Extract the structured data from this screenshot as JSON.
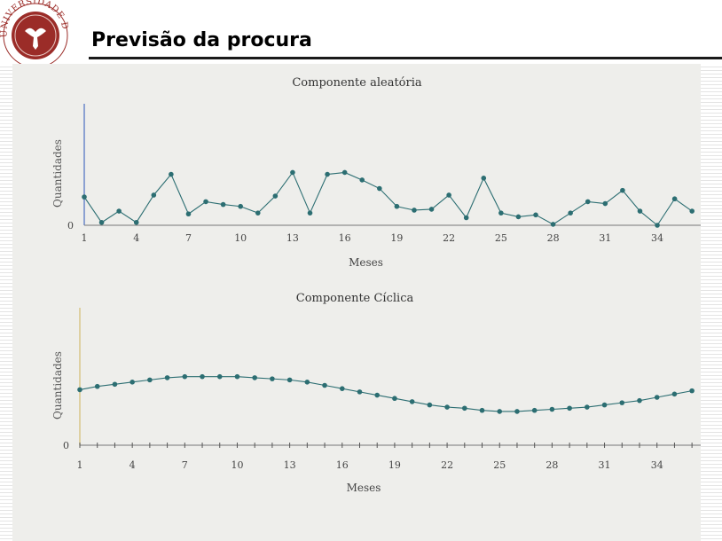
{
  "page": {
    "title": "Previsão da procura",
    "logo_text": "UNIVERSIDADE DE ÉVORA"
  },
  "colors": {
    "series": "#2c6e72",
    "axis": "#777777",
    "ticks": "#444444",
    "title_rule": "#1a1a1a",
    "logo_red": "#9b2c28"
  },
  "chart_data": [
    {
      "type": "line",
      "title": "Componente aleatória",
      "xlabel": "Meses",
      "ylabel": "Quantidades",
      "x_ticks": [
        1,
        4,
        7,
        10,
        13,
        16,
        19,
        22,
        25,
        28,
        31,
        34
      ],
      "y_ticks": [
        0
      ],
      "xlim": [
        1,
        36.5
      ],
      "ylim": [
        0,
        11
      ],
      "grid": false,
      "series": [
        {
          "x": [
            1,
            2,
            3,
            4,
            5,
            6,
            7,
            8,
            9,
            10,
            11,
            12,
            13,
            14,
            15,
            16,
            17,
            18,
            19,
            20,
            21,
            22,
            23,
            24,
            25,
            26,
            27,
            28,
            29,
            30,
            31,
            32,
            33,
            34,
            35,
            36
          ],
          "values": [
            3.0,
            0.3,
            1.5,
            0.3,
            3.2,
            5.4,
            1.2,
            2.5,
            2.2,
            2.0,
            1.3,
            3.1,
            5.6,
            1.3,
            5.4,
            5.6,
            4.8,
            3.9,
            2.0,
            1.6,
            1.7,
            3.2,
            0.8,
            5.0,
            1.3,
            0.9,
            1.1,
            0.1,
            1.3,
            2.5,
            2.3,
            3.7,
            1.5,
            0.0,
            2.8,
            1.5
          ]
        }
      ]
    },
    {
      "type": "line",
      "title": "Componente Cíclica",
      "xlabel": "Meses",
      "ylabel": "Quantidades",
      "x_ticks": [
        1,
        4,
        7,
        10,
        13,
        16,
        19,
        22,
        25,
        28,
        31,
        34
      ],
      "y_ticks": [
        0
      ],
      "xlim": [
        1,
        36.5
      ],
      "ylim": [
        0,
        11
      ],
      "grid": false,
      "series": [
        {
          "x": [
            1,
            2,
            3,
            4,
            5,
            6,
            7,
            8,
            9,
            10,
            11,
            12,
            13,
            14,
            15,
            16,
            17,
            18,
            19,
            20,
            21,
            22,
            23,
            24,
            25,
            26,
            27,
            28,
            29,
            30,
            31,
            32,
            33,
            34,
            35,
            36
          ],
          "values": [
            5.1,
            5.4,
            5.6,
            5.8,
            6.0,
            6.2,
            6.3,
            6.3,
            6.3,
            6.3,
            6.2,
            6.1,
            6.0,
            5.8,
            5.5,
            5.2,
            4.9,
            4.6,
            4.3,
            4.0,
            3.7,
            3.5,
            3.4,
            3.2,
            3.1,
            3.1,
            3.2,
            3.3,
            3.4,
            3.5,
            3.7,
            3.9,
            4.1,
            4.4,
            4.7,
            5.0
          ]
        }
      ]
    }
  ]
}
